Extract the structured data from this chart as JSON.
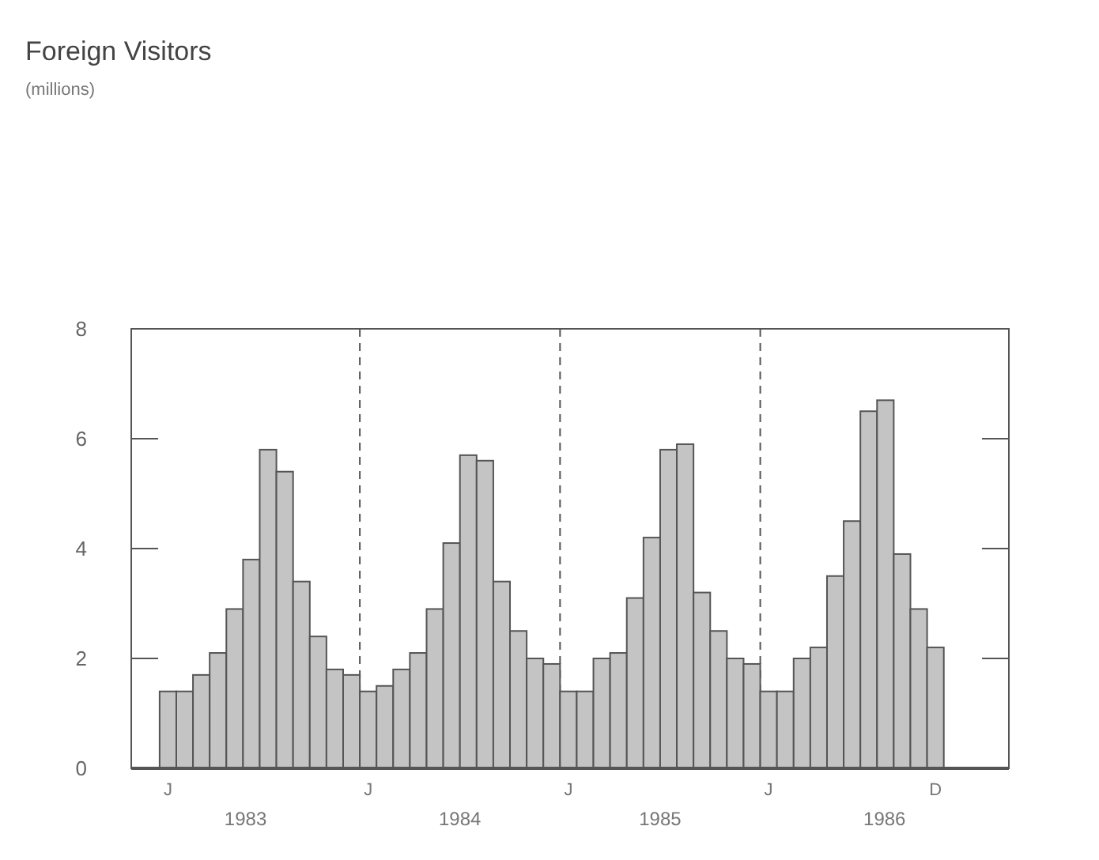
{
  "chart_data": {
    "type": "bar",
    "title": "Foreign Visitors",
    "subtitle": "(millions)",
    "categories": [
      "J",
      null,
      null,
      null,
      null,
      null,
      null,
      null,
      null,
      null,
      null,
      null,
      "J",
      null,
      null,
      null,
      null,
      null,
      null,
      null,
      null,
      null,
      null,
      null,
      "J",
      null,
      null,
      null,
      null,
      null,
      null,
      null,
      null,
      null,
      null,
      null,
      "J",
      null,
      null,
      null,
      null,
      null,
      null,
      null,
      null,
      null,
      "D"
    ],
    "values": [
      1.4,
      1.4,
      1.7,
      2.1,
      2.9,
      3.8,
      5.8,
      5.4,
      3.4,
      2.4,
      1.8,
      1.7,
      1.4,
      1.5,
      1.8,
      2.1,
      2.9,
      4.1,
      5.7,
      5.6,
      3.4,
      2.5,
      2.0,
      1.9,
      1.4,
      1.4,
      2.0,
      2.1,
      3.1,
      4.2,
      5.8,
      5.9,
      3.2,
      2.5,
      2.0,
      1.9,
      1.4,
      1.4,
      2.0,
      2.2,
      3.5,
      4.5,
      6.5,
      6.7,
      3.9,
      2.9,
      2.2
    ],
    "color": "#c4c4c4",
    "ylim": [
      0,
      8
    ],
    "yticks": [
      0,
      2,
      4,
      6,
      8
    ],
    "annotations": [
      "1983",
      "1984",
      "1985",
      "1986"
    ],
    "grid": false
  }
}
